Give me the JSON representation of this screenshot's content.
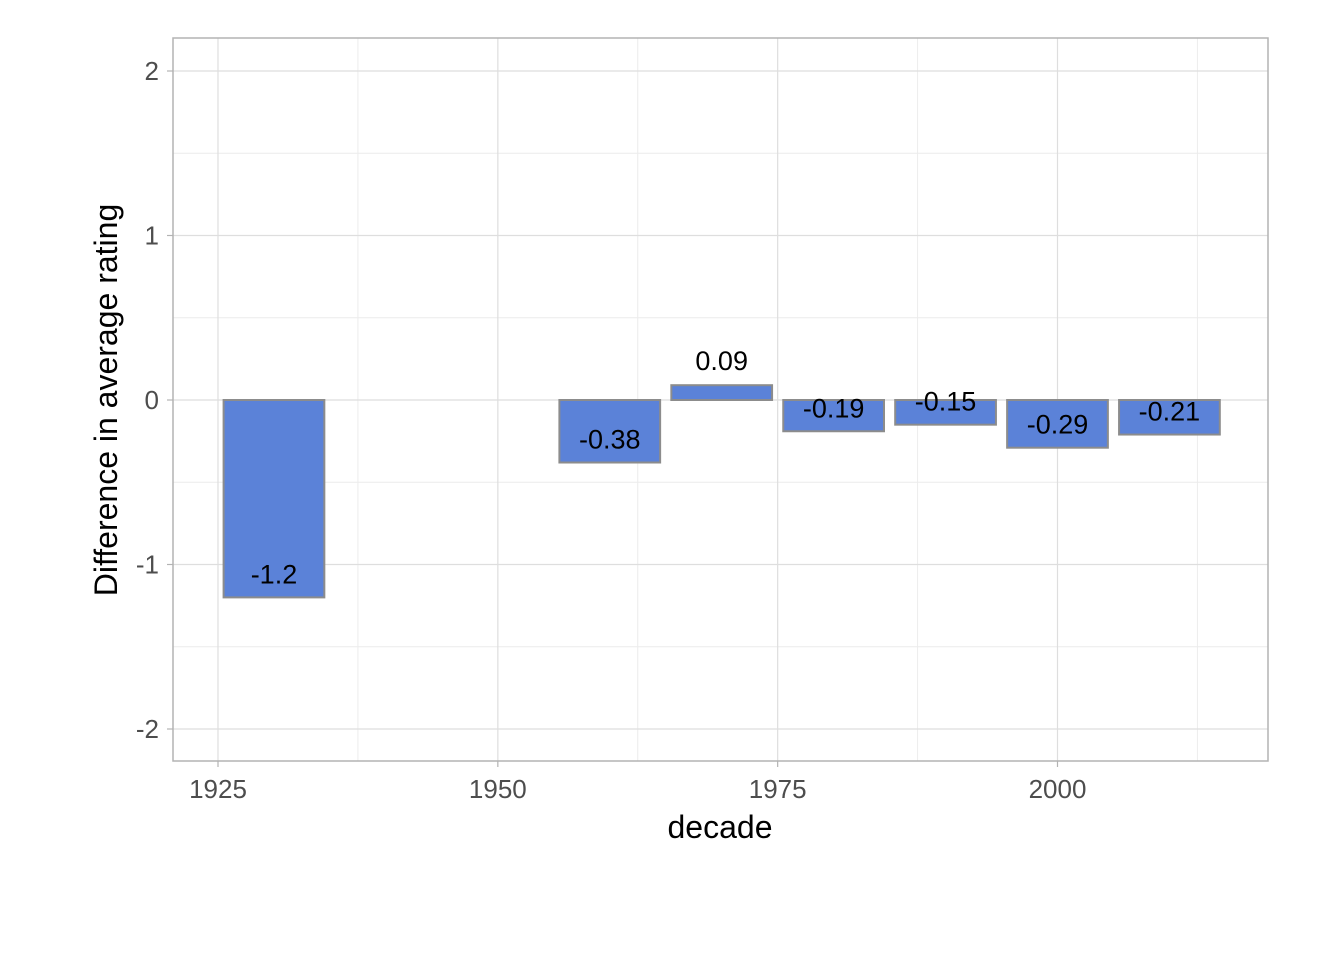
{
  "chart_data": {
    "type": "bar",
    "title": "",
    "xlabel": "decade",
    "ylabel": "Difference in average rating",
    "x_ticks": [
      1925,
      1950,
      1975,
      2000
    ],
    "y_ticks": [
      -2,
      -1,
      0,
      1,
      2
    ],
    "xlim": [
      1920,
      2018
    ],
    "ylim": [
      -2.2,
      2.2
    ],
    "grid": true,
    "bar_width_years": 9,
    "x": [
      1930,
      1960,
      1970,
      1980,
      1990,
      2000,
      2010
    ],
    "values": [
      -1.2,
      -0.38,
      0.09,
      -0.19,
      -0.15,
      -0.29,
      -0.21
    ],
    "data_labels": [
      "-1.2",
      "-0.38",
      "0.09",
      "-0.19",
      "-0.15",
      "-0.29",
      "-0.21"
    ],
    "colors": {
      "bar_fill": "#5b82d8",
      "bar_stroke": "#8c8c8c",
      "panel_border": "#b3b3b3",
      "grid_major": "#dedede",
      "grid_minor": "#ececec"
    }
  }
}
